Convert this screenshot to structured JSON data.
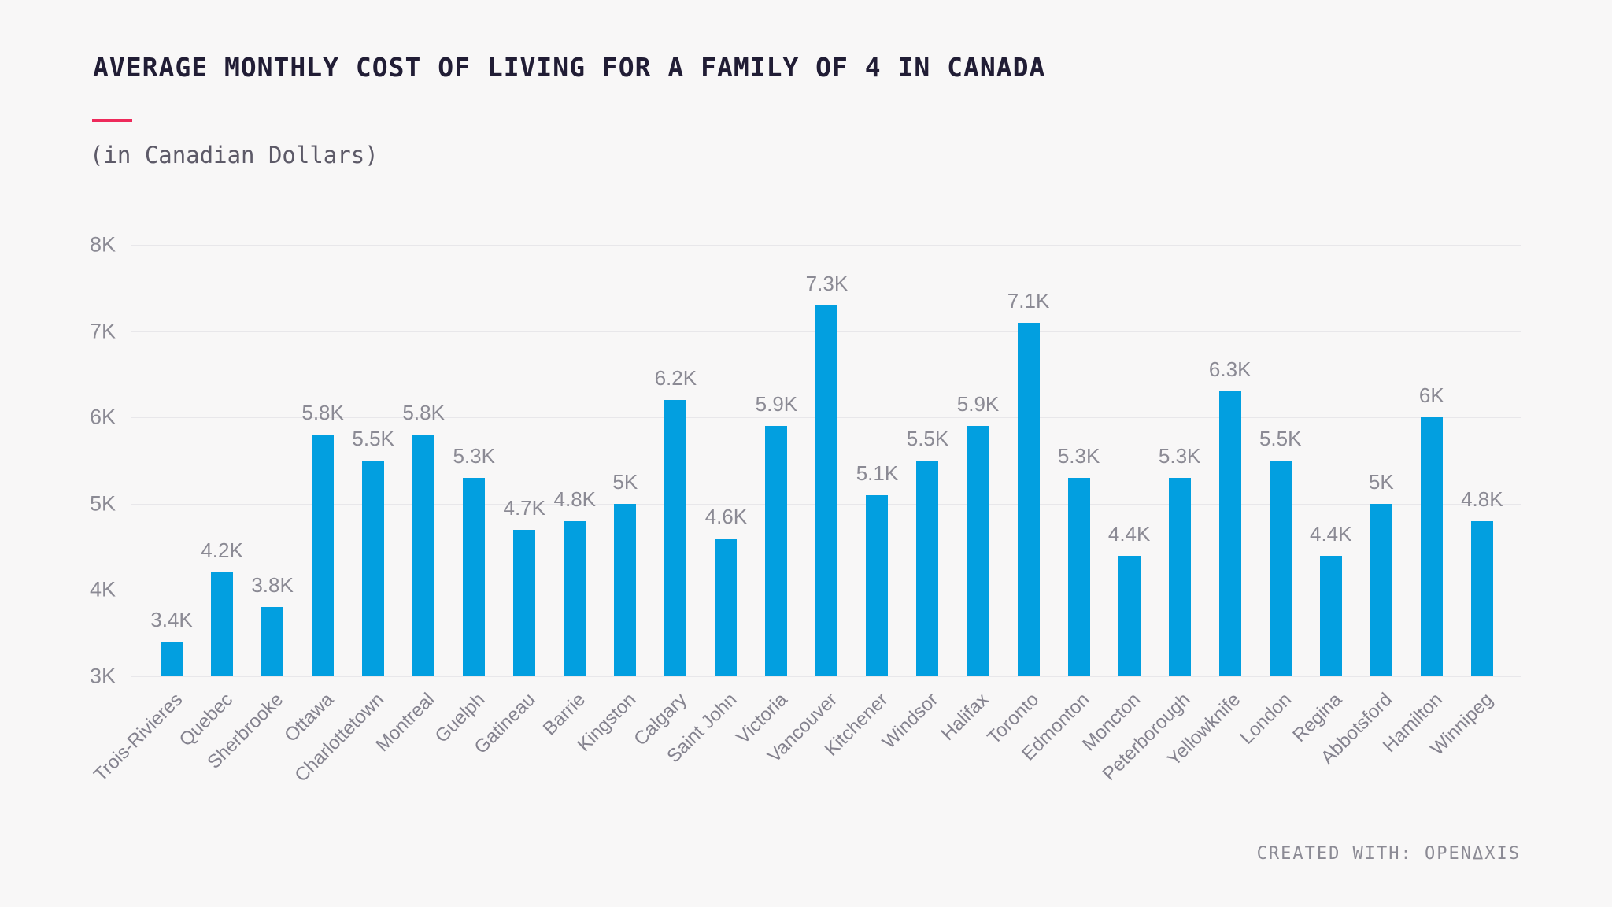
{
  "theme": {
    "background": "#f8f7f7",
    "title_color": "#211d35",
    "accent_underline": "#ee2a5b",
    "label_gray": "#8b8a94"
  },
  "footer": {
    "credit": "CREATED WITH: OPENΔXIS"
  },
  "chart_data": {
    "type": "bar",
    "title": "AVERAGE MONTHLY COST OF LIVING FOR A FAMILY OF 4 IN CANADA",
    "subtitle": "(in Canadian Dollars)",
    "xlabel": "",
    "ylabel": "",
    "ylim": [
      3000,
      8000
    ],
    "grid": true,
    "legend": false,
    "bar_color": "#029fe0",
    "y_ticks": [
      {
        "value": 8000,
        "label": "8K"
      },
      {
        "value": 7000,
        "label": "7K"
      },
      {
        "value": 6000,
        "label": "6K"
      },
      {
        "value": 5000,
        "label": "5K"
      },
      {
        "value": 4000,
        "label": "4K"
      },
      {
        "value": 3000,
        "label": "3K"
      }
    ],
    "categories": [
      "Trois-Rivieres",
      "Quebec",
      "Sherbrooke",
      "Ottawa",
      "Charlottetown",
      "Montreal",
      "Guelph",
      "Gatineau",
      "Barrie",
      "Kingston",
      "Calgary",
      "Saint John",
      "Victoria",
      "Vancouver",
      "Kitchener",
      "Windsor",
      "Halifax",
      "Toronto",
      "Edmonton",
      "Moncton",
      "Peterborough",
      "Yellowknife",
      "London",
      "Regina",
      "Abbotsford",
      "Hamilton",
      "Winnipeg"
    ],
    "values": [
      3400,
      4200,
      3800,
      5800,
      5500,
      5800,
      5300,
      4700,
      4800,
      5000,
      6200,
      4600,
      5900,
      7300,
      5100,
      5500,
      5900,
      7100,
      5300,
      4400,
      5300,
      6300,
      5500,
      4400,
      5000,
      6000,
      4800
    ],
    "value_labels": [
      "3.4K",
      "4.2K",
      "3.8K",
      "5.8K",
      "5.5K",
      "5.8K",
      "5.3K",
      "4.7K",
      "4.8K",
      "5K",
      "6.2K",
      "4.6K",
      "5.9K",
      "7.3K",
      "5.1K",
      "5.5K",
      "5.9K",
      "7.1K",
      "5.3K",
      "4.4K",
      "5.3K",
      "6.3K",
      "5.5K",
      "4.4K",
      "5K",
      "6K",
      "4.8K"
    ]
  }
}
